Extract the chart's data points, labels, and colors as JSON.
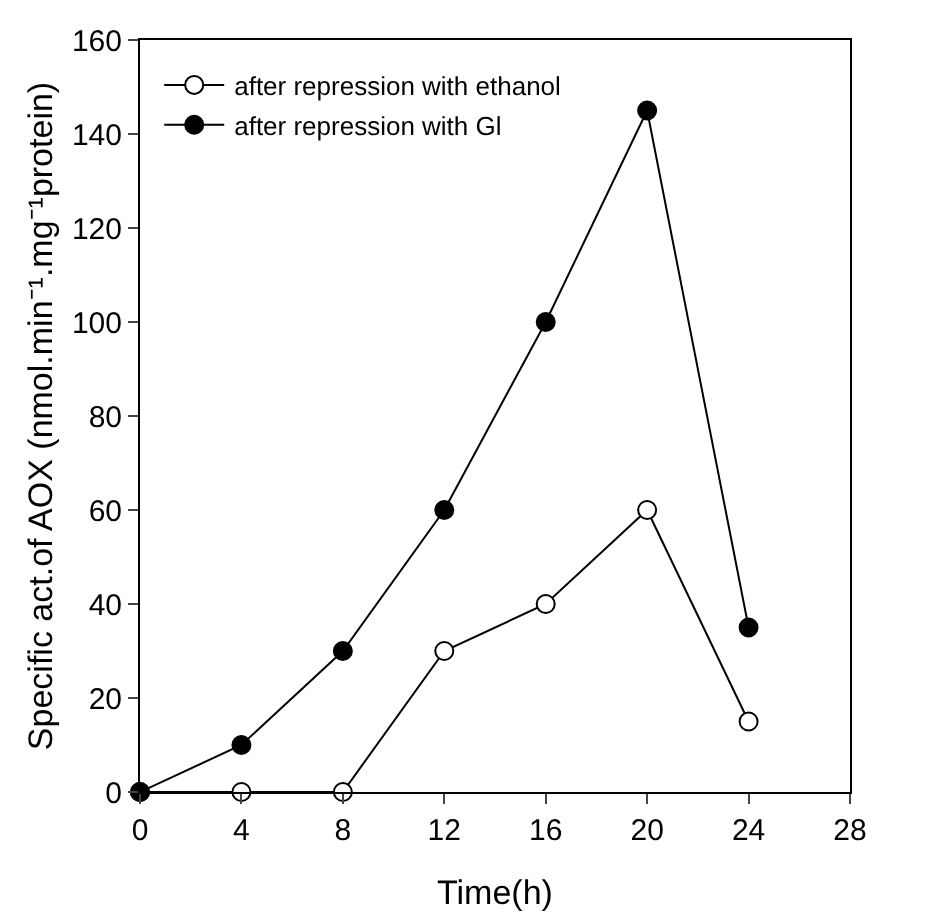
{
  "chart_data": {
    "type": "line",
    "xlabel": "Time(h)",
    "ylabel": "Specific act.of AOX (nmol.min⁻¹.mg⁻¹protein)",
    "x": [
      0,
      4,
      8,
      12,
      16,
      20,
      24
    ],
    "series": [
      {
        "name": "after repression with ethanol",
        "color": "#000000",
        "values": [
          0,
          0,
          0,
          30,
          40,
          60,
          15
        ]
      },
      {
        "name": "after repression with Gl",
        "color": "#000000",
        "values": [
          0,
          10,
          30,
          60,
          100,
          145,
          35
        ]
      }
    ],
    "xlim": [
      0,
      28
    ],
    "xticks": [
      0,
      4,
      8,
      12,
      16,
      20,
      24,
      28
    ],
    "ylim": [
      0,
      160
    ],
    "yticks": [
      0,
      20,
      40,
      60,
      80,
      100,
      120,
      140,
      160
    ],
    "grid": false,
    "legend": "top left",
    "marker": "circle",
    "line_style": "solid"
  }
}
